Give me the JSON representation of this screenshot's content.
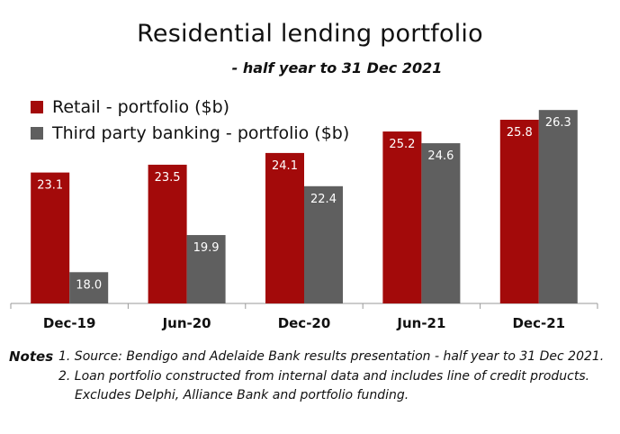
{
  "chart_data": {
    "type": "bar",
    "title": "Residential lending portfolio",
    "subtitle": "- half year to 31 Dec 2021",
    "categories": [
      "Dec-19",
      "Jun-20",
      "Dec-20",
      "Jun-21",
      "Dec-21"
    ],
    "series": [
      {
        "name": "Retail - portfolio ($b)",
        "color": "#a30a0a",
        "values": [
          23.1,
          23.5,
          24.1,
          25.2,
          25.8
        ]
      },
      {
        "name": "Third party banking - portfolio ($b)",
        "color": "#5f5f5f",
        "values": [
          18.0,
          19.9,
          22.4,
          24.6,
          26.3
        ]
      }
    ],
    "legend_position": "top-left",
    "grid": false
  },
  "notes": {
    "heading": "Notes",
    "items": [
      "1. Source: Bendigo and Adelaide Bank results presentation - half year to 31 Dec 2021.",
      "2. Loan portfolio constructed from internal data and includes line of credit products.",
      "Excludes Delphi, Alliance Bank and portfolio funding."
    ]
  }
}
